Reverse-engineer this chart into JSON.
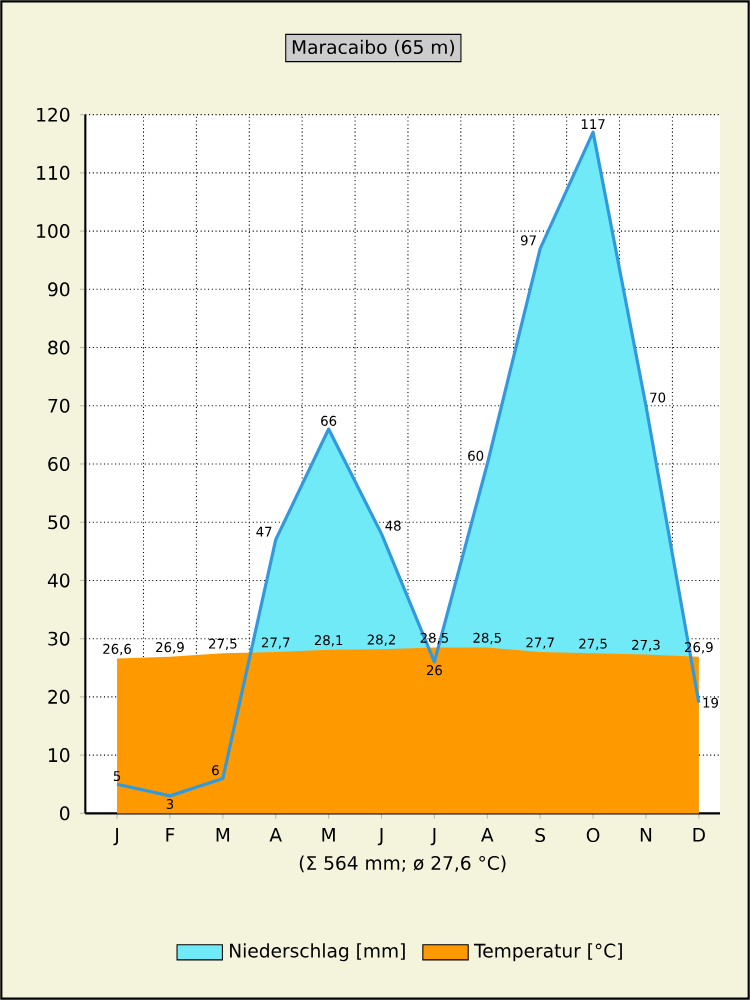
{
  "chart_data": {
    "type": "area",
    "title": "Maracaibo (65 m)",
    "xlabel": "(Σ 564 mm; ø 27,6 °C)",
    "categories": [
      "J",
      "F",
      "M",
      "A",
      "M",
      "J",
      "J",
      "A",
      "S",
      "O",
      "N",
      "D"
    ],
    "series": [
      {
        "name": "Niederschlag [mm]",
        "color": "#3399dd",
        "values": [
          5,
          3,
          6,
          47,
          66,
          48,
          26,
          60,
          97,
          117,
          70,
          19
        ],
        "value_labels": [
          "5",
          "3",
          "6",
          "47",
          "66",
          "48",
          "26",
          "60",
          "97",
          "117",
          "70",
          "19"
        ]
      },
      {
        "name": "Temperatur [°C]",
        "color": "#ff9900",
        "values": [
          26.6,
          26.9,
          27.5,
          27.7,
          28.1,
          28.2,
          28.5,
          28.5,
          27.7,
          27.5,
          27.3,
          26.9
        ],
        "value_labels": [
          "26,6",
          "26,9",
          "27,5",
          "27,7",
          "28,1",
          "28,2",
          "28,5",
          "28,5",
          "27,7",
          "27,5",
          "27,3",
          "26,9"
        ]
      }
    ],
    "ylim": [
      0,
      120
    ],
    "yticks": [
      0,
      10,
      20,
      30,
      40,
      50,
      60,
      70,
      80,
      90,
      100,
      110,
      120
    ],
    "grid": true,
    "legend": "bottom"
  }
}
